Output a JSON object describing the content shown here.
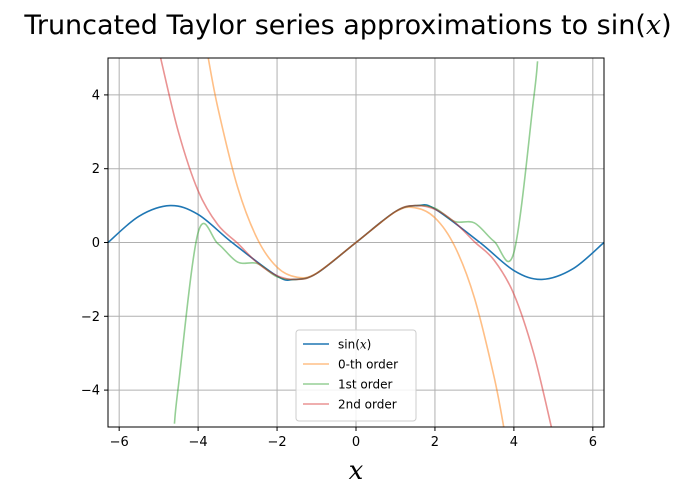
{
  "chart_data": {
    "type": "line",
    "title": "Truncated Taylor series approximations to sin(x)",
    "xlabel": "x",
    "ylabel": "",
    "xlim": [
      -6.283,
      6.283
    ],
    "ylim": [
      -5,
      5
    ],
    "grid": true,
    "legend_position": "lower center",
    "x_ticks": [
      -6,
      -4,
      -2,
      0,
      2,
      4,
      6
    ],
    "x_tick_labels": [
      "−6",
      "−4",
      "−2",
      "0",
      "2",
      "4",
      "6"
    ],
    "y_ticks": [
      -4,
      -2,
      0,
      2,
      4
    ],
    "y_tick_labels": [
      "−4",
      "−2",
      "0",
      "2",
      "4"
    ],
    "series": [
      {
        "name": "sin(x)",
        "color": "#1f77b4",
        "alpha": 1.0,
        "x": [
          -6.28,
          -5.5,
          -4.71,
          -4.0,
          -3.14,
          -2.0,
          -1.57,
          -1.0,
          0,
          1.0,
          1.57,
          2.0,
          3.14,
          4.0,
          4.71,
          5.5,
          6.28
        ],
        "y": [
          0.0,
          0.71,
          1.0,
          0.76,
          0.0,
          -0.91,
          -1.0,
          -0.84,
          0.0,
          0.84,
          1.0,
          0.91,
          0.0,
          -0.76,
          -1.0,
          -0.71,
          0.0
        ]
      },
      {
        "name": "0-th order",
        "color": "#ff7f0e",
        "alpha": 0.5,
        "x": [
          -3.75,
          -3.5,
          -3.0,
          -2.5,
          -2.0,
          -1.5,
          -1.0,
          0,
          1.0,
          1.5,
          2.0,
          2.5,
          3.0,
          3.5,
          3.75
        ],
        "y": [
          5.04,
          3.65,
          1.5,
          0.1,
          -0.67,
          -0.94,
          -0.83,
          0.0,
          0.83,
          0.94,
          0.67,
          -0.1,
          -1.5,
          -3.65,
          -5.04
        ]
      },
      {
        "name": "1st order",
        "color": "#2ca02c",
        "alpha": 0.5,
        "x": [
          -4.6,
          -4.5,
          -4.0,
          -3.5,
          -3.0,
          -2.5,
          -2.0,
          -1.5,
          -1.0,
          0,
          1.0,
          1.5,
          2.0,
          2.5,
          3.0,
          3.5,
          4.0,
          4.5,
          4.6
        ],
        "y": [
          -4.91,
          -3.89,
          0.27,
          -0.03,
          -0.53,
          -0.57,
          -0.93,
          -1.0,
          -0.84,
          0.0,
          0.84,
          1.0,
          0.93,
          0.57,
          0.53,
          0.03,
          -0.27,
          3.89,
          4.91
        ]
      },
      {
        "name": "2nd order",
        "color": "#d62728",
        "alpha": 0.5,
        "x": [
          -4.95,
          -4.5,
          -4.0,
          -3.5,
          -3.0,
          -2.5,
          -2.0,
          -1.5,
          -1.0,
          0,
          1.0,
          1.5,
          2.0,
          2.5,
          3.0,
          3.5,
          4.0,
          4.5,
          4.95
        ],
        "y": [
          5.0,
          3.0,
          1.4,
          0.48,
          -0.02,
          -0.55,
          -0.9,
          -1.0,
          -0.84,
          0.0,
          0.84,
          1.0,
          0.9,
          0.55,
          0.02,
          -0.48,
          -1.4,
          -3.0,
          -5.0
        ]
      }
    ]
  }
}
